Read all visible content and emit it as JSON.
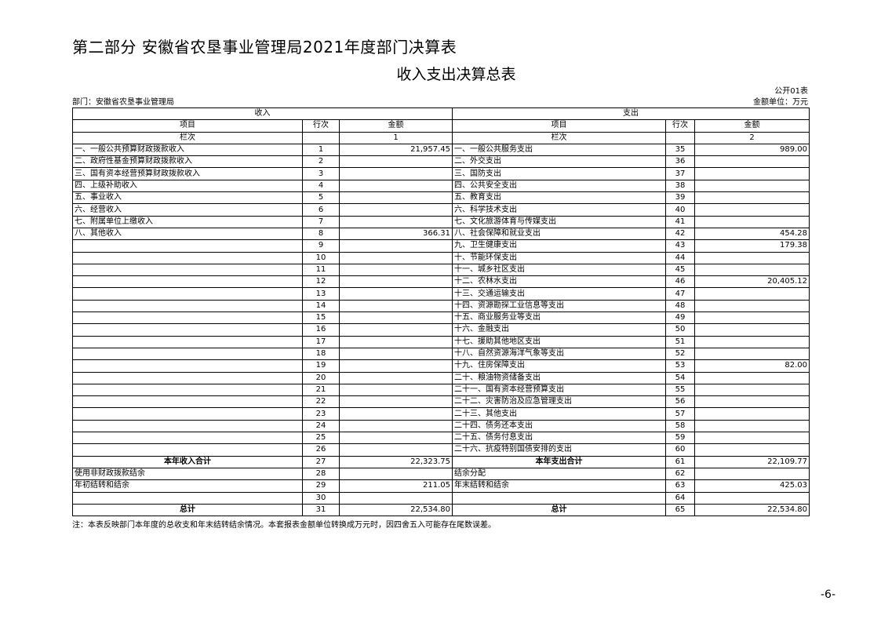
{
  "title": "第二部分 安徽省农垦事业管理局2021年度部门决算表",
  "subtitle": "收入支出决算总表",
  "table_no": "公开01表",
  "department": "部门：安徽省农垦事业管理局",
  "unit": "金额单位：万元",
  "headers": {
    "income": "收入",
    "expense": "支出",
    "item": "项目",
    "line": "行次",
    "amount": "金额",
    "column": "栏次",
    "col1": "1",
    "col2": "2"
  },
  "rows": [
    {
      "li": "一、一般公共预算财政拨款收入",
      "ll": "1",
      "la": "21,957.45",
      "ri": "一、一般公共服务支出",
      "rl": "35",
      "ra": "989.00"
    },
    {
      "li": "二、政府性基金预算财政拨款收入",
      "ll": "2",
      "la": "",
      "ri": "二、外交支出",
      "rl": "36",
      "ra": ""
    },
    {
      "li": "三、国有资本经营预算财政拨款收入",
      "ll": "3",
      "la": "",
      "ri": "三、国防支出",
      "rl": "37",
      "ra": ""
    },
    {
      "li": "四、上级补助收入",
      "ll": "4",
      "la": "",
      "ri": "四、公共安全支出",
      "rl": "38",
      "ra": ""
    },
    {
      "li": "五、事业收入",
      "ll": "5",
      "la": "",
      "ri": "五、教育支出",
      "rl": "39",
      "ra": ""
    },
    {
      "li": "六、经营收入",
      "ll": "6",
      "la": "",
      "ri": "六、科学技术支出",
      "rl": "40",
      "ra": ""
    },
    {
      "li": "七、附属单位上缴收入",
      "ll": "7",
      "la": "",
      "ri": "七、文化旅游体育与传媒支出",
      "rl": "41",
      "ra": ""
    },
    {
      "li": "八、其他收入",
      "ll": "8",
      "la": "366.31",
      "ri": "八、社会保障和就业支出",
      "rl": "42",
      "ra": "454.28"
    },
    {
      "li": "",
      "ll": "9",
      "la": "",
      "ri": "九、卫生健康支出",
      "rl": "43",
      "ra": "179.38"
    },
    {
      "li": "",
      "ll": "10",
      "la": "",
      "ri": "十、节能环保支出",
      "rl": "44",
      "ra": ""
    },
    {
      "li": "",
      "ll": "11",
      "la": "",
      "ri": "十一、城乡社区支出",
      "rl": "45",
      "ra": ""
    },
    {
      "li": "",
      "ll": "12",
      "la": "",
      "ri": "十二、农林水支出",
      "rl": "46",
      "ra": "20,405.12"
    },
    {
      "li": "",
      "ll": "13",
      "la": "",
      "ri": "十三、交通运输支出",
      "rl": "47",
      "ra": ""
    },
    {
      "li": "",
      "ll": "14",
      "la": "",
      "ri": "十四、资源勘探工业信息等支出",
      "rl": "48",
      "ra": ""
    },
    {
      "li": "",
      "ll": "15",
      "la": "",
      "ri": "十五、商业服务业等支出",
      "rl": "49",
      "ra": ""
    },
    {
      "li": "",
      "ll": "16",
      "la": "",
      "ri": "十六、金融支出",
      "rl": "50",
      "ra": ""
    },
    {
      "li": "",
      "ll": "17",
      "la": "",
      "ri": "十七、援助其他地区支出",
      "rl": "51",
      "ra": ""
    },
    {
      "li": "",
      "ll": "18",
      "la": "",
      "ri": "十八、自然资源海洋气象等支出",
      "rl": "52",
      "ra": ""
    },
    {
      "li": "",
      "ll": "19",
      "la": "",
      "ri": "十九、住房保障支出",
      "rl": "53",
      "ra": "82.00"
    },
    {
      "li": "",
      "ll": "20",
      "la": "",
      "ri": "二十、粮油物资储备支出",
      "rl": "54",
      "ra": ""
    },
    {
      "li": "",
      "ll": "21",
      "la": "",
      "ri": "二十一、国有资本经营预算支出",
      "rl": "55",
      "ra": ""
    },
    {
      "li": "",
      "ll": "22",
      "la": "",
      "ri": "二十二、灾害防治及应急管理支出",
      "rl": "56",
      "ra": ""
    },
    {
      "li": "",
      "ll": "23",
      "la": "",
      "ri": "二十三、其他支出",
      "rl": "57",
      "ra": ""
    },
    {
      "li": "",
      "ll": "24",
      "la": "",
      "ri": "二十四、债务还本支出",
      "rl": "58",
      "ra": ""
    },
    {
      "li": "",
      "ll": "25",
      "la": "",
      "ri": "二十五、债务付息支出",
      "rl": "59",
      "ra": ""
    },
    {
      "li": "",
      "ll": "26",
      "la": "",
      "ri": "二十六、抗疫特别国债安排的支出",
      "rl": "60",
      "ra": ""
    },
    {
      "li": "本年收入合计",
      "ll": "27",
      "la": "22,323.75",
      "ri": "本年支出合计",
      "rl": "61",
      "ra": "22,109.77",
      "bold": true
    },
    {
      "li": "使用非财政拨款结余",
      "ll": "28",
      "la": "",
      "ri": "结余分配",
      "rl": "62",
      "ra": ""
    },
    {
      "li": "年初结转和结余",
      "ll": "29",
      "la": "211.05",
      "ri": "年末结转和结余",
      "rl": "63",
      "ra": "425.03"
    },
    {
      "li": "",
      "ll": "30",
      "la": "",
      "ri": "",
      "rl": "64",
      "ra": ""
    },
    {
      "li": "总计",
      "ll": "31",
      "la": "22,534.80",
      "ri": "总计",
      "rl": "65",
      "ra": "22,534.80",
      "bold": true
    }
  ],
  "note": "注：本表反映部门本年度的总收支和年末结转结余情况。本套报表金额单位转换成万元时，因四舍五入可能存在尾数误差。",
  "page_number": "-6-"
}
